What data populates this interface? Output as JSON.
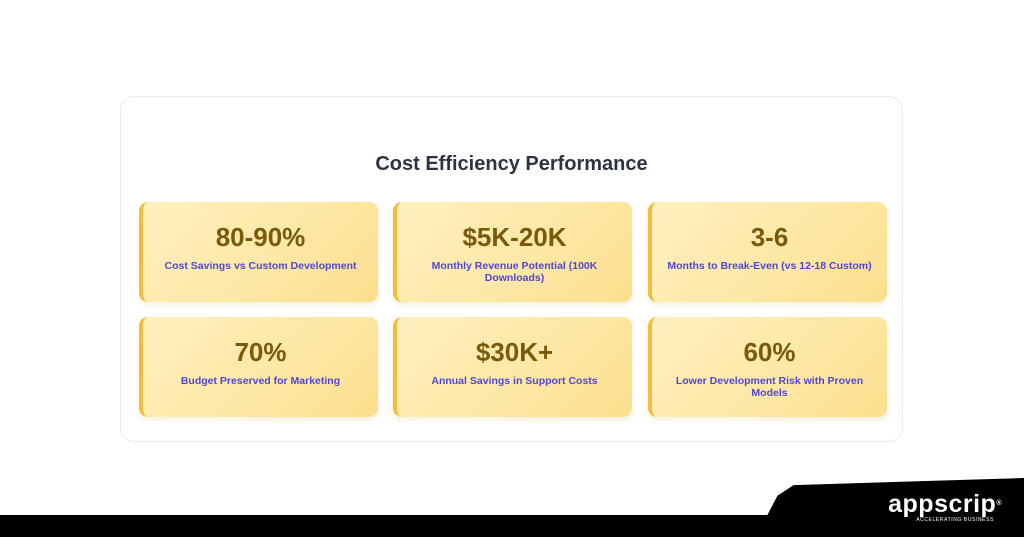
{
  "heading": "Cost Efficiency Performance",
  "metrics": [
    {
      "value": "80-90%",
      "label": "Cost Savings vs Custom Development"
    },
    {
      "value": "$5K-20K",
      "label": "Monthly Revenue Potential (100K Downloads)"
    },
    {
      "value": "3-6",
      "label": "Months to Break-Even (vs 12-18 Custom)"
    },
    {
      "value": "70%",
      "label": "Budget Preserved for Marketing"
    },
    {
      "value": "$30K+",
      "label": "Annual Savings in Support Costs"
    },
    {
      "value": "60%",
      "label": "Lower Development Risk with Proven Models"
    }
  ],
  "brand": {
    "name": "appscrip",
    "registered": "®",
    "tagline": "ACCELERATING BUSINESS"
  },
  "colors": {
    "card_accent": "#f2bd3a",
    "value_text": "#7a5a0a",
    "label_text": "#5146d4",
    "heading_text": "#2c3444"
  }
}
